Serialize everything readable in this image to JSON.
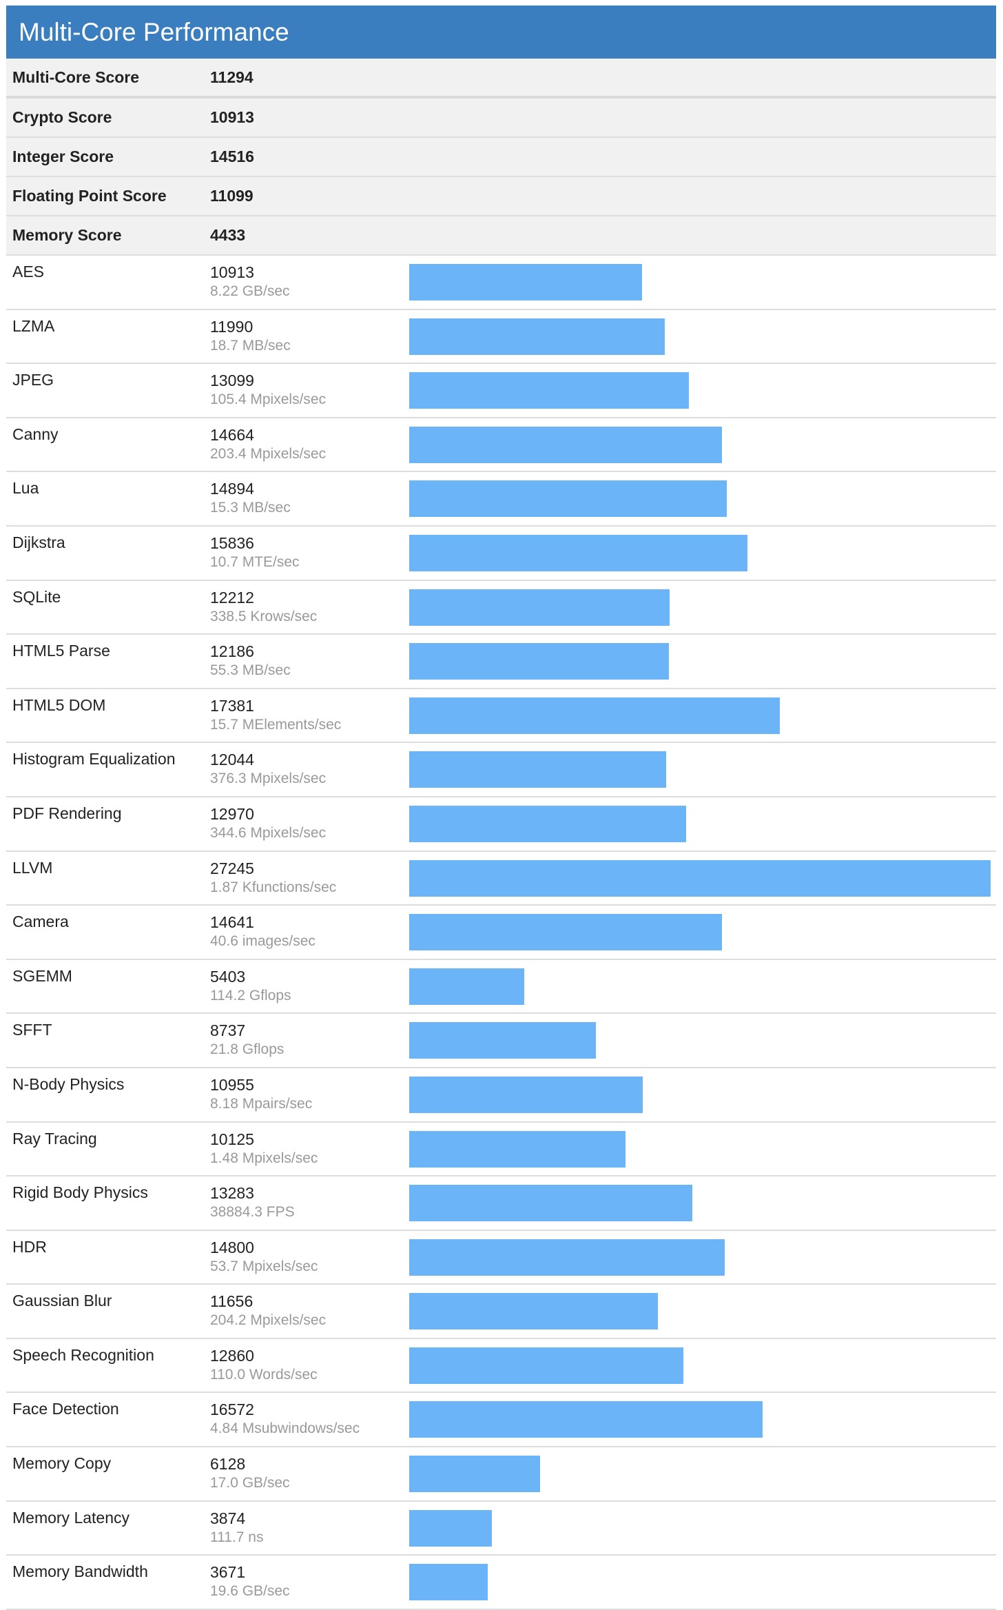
{
  "section": {
    "title": "Multi-Core Performance"
  },
  "summary": [
    {
      "label": "Multi-Core Score",
      "value": "11294"
    },
    {
      "label": "Crypto Score",
      "value": "10913"
    },
    {
      "label": "Integer Score",
      "value": "14516"
    },
    {
      "label": "Floating Point Score",
      "value": "11099"
    },
    {
      "label": "Memory Score",
      "value": "4433"
    }
  ],
  "bar_color": "#6ab4f7",
  "header_color": "#3a7ebf",
  "chart_data": {
    "type": "bar",
    "title": "",
    "orientation": "horizontal",
    "xlim": [
      0,
      27245
    ],
    "categories": [
      "AES",
      "LZMA",
      "JPEG",
      "Canny",
      "Lua",
      "Dijkstra",
      "SQLite",
      "HTML5 Parse",
      "HTML5 DOM",
      "Histogram Equalization",
      "PDF Rendering",
      "LLVM",
      "Camera",
      "SGEMM",
      "SFFT",
      "N-Body Physics",
      "Ray Tracing",
      "Rigid Body Physics",
      "HDR",
      "Gaussian Blur",
      "Speech Recognition",
      "Face Detection",
      "Memory Copy",
      "Memory Latency",
      "Memory Bandwidth"
    ],
    "values": [
      10913,
      11990,
      13099,
      14664,
      14894,
      15836,
      12212,
      12186,
      17381,
      12044,
      12970,
      27245,
      14641,
      5403,
      8737,
      10955,
      10125,
      13283,
      14800,
      11656,
      12860,
      16572,
      6128,
      3874,
      3671
    ],
    "rates": [
      "8.22 GB/sec",
      "18.7 MB/sec",
      "105.4 Mpixels/sec",
      "203.4 Mpixels/sec",
      "15.3 MB/sec",
      "10.7 MTE/sec",
      "338.5 Krows/sec",
      "55.3 MB/sec",
      "15.7 MElements/sec",
      "376.3 Mpixels/sec",
      "344.6 Mpixels/sec",
      "1.87 Kfunctions/sec",
      "40.6 images/sec",
      "114.2 Gflops",
      "21.8 Gflops",
      "8.18 Mpairs/sec",
      "1.48 Mpixels/sec",
      "38884.3 FPS",
      "53.7 Mpixels/sec",
      "204.2 Mpixels/sec",
      "110.0 Words/sec",
      "4.84 Msubwindows/sec",
      "17.0 GB/sec",
      "111.7 ns",
      "19.6 GB/sec"
    ]
  }
}
